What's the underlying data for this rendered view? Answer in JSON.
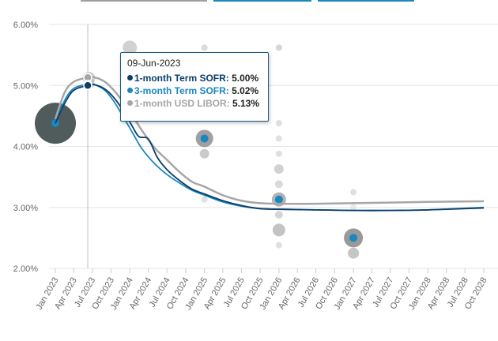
{
  "chart_data": {
    "type": "line",
    "title": "",
    "xlabel": "",
    "ylabel": "",
    "ylim": [
      2.0,
      6.0
    ],
    "xlim": [
      "2023-01-01",
      "2028-10-01"
    ],
    "y_ticks": [
      "2.00%",
      "3.00%",
      "4.00%",
      "5.00%",
      "6.00%"
    ],
    "y_tick_values": [
      2.0,
      3.0,
      4.0,
      5.0,
      6.0
    ],
    "x_ticks": [
      "Jan 2023",
      "Apr 2023",
      "Jul 2023",
      "Oct 2023",
      "Jan 2024",
      "Apr 2024",
      "Jul 2024",
      "Oct 2024",
      "Jan 2025",
      "Apr 2025",
      "Jul 2025",
      "Oct 2025",
      "Jan 2026",
      "Apr 2026",
      "Jul 2026",
      "Oct 2026",
      "Jan 2027",
      "Apr 2027",
      "Jul 2027",
      "Oct 2027",
      "Jan 2028",
      "Apr 2028",
      "Jul 2028",
      "Oct 2028"
    ],
    "x_tick_dates": [
      "2023-01-01",
      "2023-04-01",
      "2023-07-01",
      "2023-10-01",
      "2024-01-01",
      "2024-04-01",
      "2024-07-01",
      "2024-10-01",
      "2025-01-01",
      "2025-04-01",
      "2025-07-01",
      "2025-10-01",
      "2026-01-01",
      "2026-04-01",
      "2026-07-01",
      "2026-10-01",
      "2027-01-01",
      "2027-04-01",
      "2027-07-01",
      "2027-10-01",
      "2028-01-01",
      "2028-04-01",
      "2028-07-01",
      "2028-10-01"
    ],
    "grid": "horizontal",
    "crosshair_date": "2023-06-09",
    "series": [
      {
        "name": "1-month Term SOFR",
        "color": "#0b3d6b",
        "points": [
          [
            "2023-01-01",
            4.38
          ],
          [
            "2023-02-15",
            4.7
          ],
          [
            "2023-04-01",
            4.92
          ],
          [
            "2023-06-09",
            5.0
          ],
          [
            "2023-07-15",
            5.01
          ],
          [
            "2023-09-01",
            4.94
          ],
          [
            "2023-10-15",
            4.8
          ],
          [
            "2023-12-01",
            4.58
          ],
          [
            "2024-01-15",
            4.32
          ],
          [
            "2024-02-15",
            4.16
          ],
          [
            "2024-04-01",
            4.12
          ],
          [
            "2024-05-15",
            3.82
          ],
          [
            "2024-07-01",
            3.62
          ],
          [
            "2024-09-01",
            3.44
          ],
          [
            "2024-11-01",
            3.3
          ],
          [
            "2025-01-01",
            3.22
          ],
          [
            "2025-04-01",
            3.11
          ],
          [
            "2025-07-01",
            3.03
          ],
          [
            "2025-10-01",
            2.98
          ],
          [
            "2026-01-01",
            2.97
          ],
          [
            "2026-07-01",
            2.96
          ],
          [
            "2027-01-01",
            2.95
          ],
          [
            "2027-07-01",
            2.95
          ],
          [
            "2028-01-01",
            2.96
          ],
          [
            "2028-10-01",
            2.99
          ]
        ]
      },
      {
        "name": "3-month Term SOFR",
        "color": "#1a87c0",
        "points": [
          [
            "2023-01-01",
            4.38
          ],
          [
            "2023-02-15",
            4.75
          ],
          [
            "2023-04-01",
            4.95
          ],
          [
            "2023-06-09",
            5.02
          ],
          [
            "2023-07-15",
            5.01
          ],
          [
            "2023-09-01",
            4.92
          ],
          [
            "2023-10-15",
            4.74
          ],
          [
            "2023-12-01",
            4.48
          ],
          [
            "2024-01-15",
            4.22
          ],
          [
            "2024-03-01",
            3.96
          ],
          [
            "2024-05-01",
            3.72
          ],
          [
            "2024-07-01",
            3.54
          ],
          [
            "2024-09-01",
            3.4
          ],
          [
            "2024-11-01",
            3.28
          ],
          [
            "2025-01-01",
            3.2
          ],
          [
            "2025-04-01",
            3.09
          ],
          [
            "2025-07-01",
            3.02
          ],
          [
            "2025-10-01",
            2.98
          ],
          [
            "2026-01-01",
            2.97
          ],
          [
            "2026-07-01",
            2.96
          ],
          [
            "2027-01-01",
            2.95
          ],
          [
            "2027-07-01",
            2.95
          ],
          [
            "2028-01-01",
            2.96
          ],
          [
            "2028-10-01",
            3.0
          ]
        ]
      },
      {
        "name": "1-month USD LIBOR",
        "color": "#a6a6a6",
        "points": [
          [
            "2023-01-01",
            4.45
          ],
          [
            "2023-02-15",
            4.88
          ],
          [
            "2023-04-01",
            5.06
          ],
          [
            "2023-06-09",
            5.13
          ],
          [
            "2023-07-15",
            5.13
          ],
          [
            "2023-09-01",
            5.06
          ],
          [
            "2023-10-15",
            4.92
          ],
          [
            "2023-12-01",
            4.72
          ],
          [
            "2024-01-15",
            4.5
          ],
          [
            "2024-03-01",
            4.26
          ],
          [
            "2024-05-01",
            3.98
          ],
          [
            "2024-07-01",
            3.78
          ],
          [
            "2024-09-01",
            3.58
          ],
          [
            "2024-11-01",
            3.42
          ],
          [
            "2025-01-01",
            3.34
          ],
          [
            "2025-04-01",
            3.2
          ],
          [
            "2025-07-01",
            3.11
          ],
          [
            "2025-10-01",
            3.07
          ],
          [
            "2026-01-01",
            3.06
          ],
          [
            "2026-07-01",
            3.06
          ],
          [
            "2027-01-01",
            3.07
          ],
          [
            "2027-07-01",
            3.08
          ],
          [
            "2028-01-01",
            3.09
          ],
          [
            "2028-10-01",
            3.1
          ]
        ]
      }
    ],
    "scatter": [
      {
        "date": "2023-01-01",
        "value": 4.38,
        "size": 26,
        "color": "#3d4a4a",
        "opacity": 0.9
      },
      {
        "date": "2023-01-01",
        "value": 4.38,
        "size": 5,
        "color": "#1a87c0",
        "opacity": 1
      },
      {
        "date": "2023-06-15",
        "value": 5.12,
        "size": 8,
        "color": "#bbbbbb",
        "opacity": 0.7
      },
      {
        "date": "2023-06-15",
        "value": 5.04,
        "size": 7,
        "color": "#bbbbbb",
        "opacity": 0.7
      },
      {
        "date": "2024-01-01",
        "value": 5.62,
        "size": 9,
        "color": "#cccccc",
        "opacity": 0.9
      },
      {
        "date": "2025-01-01",
        "value": 5.62,
        "size": 4,
        "color": "#cccccc",
        "opacity": 0.7
      },
      {
        "date": "2025-01-01",
        "value": 4.13,
        "size": 11,
        "color": "#888888",
        "opacity": 0.8
      },
      {
        "date": "2025-01-01",
        "value": 4.13,
        "size": 5,
        "color": "#1a87c0",
        "opacity": 1
      },
      {
        "date": "2025-01-01",
        "value": 3.88,
        "size": 6,
        "color": "#c4c4c4",
        "opacity": 0.9
      },
      {
        "date": "2025-01-01",
        "value": 3.13,
        "size": 4,
        "color": "#dddddd",
        "opacity": 0.9
      },
      {
        "date": "2026-01-01",
        "value": 5.62,
        "size": 4,
        "color": "#cccccc",
        "opacity": 0.8
      },
      {
        "date": "2026-01-01",
        "value": 4.38,
        "size": 4,
        "color": "#dddddd",
        "opacity": 0.9
      },
      {
        "date": "2026-01-01",
        "value": 4.13,
        "size": 4,
        "color": "#dddddd",
        "opacity": 0.9
      },
      {
        "date": "2026-01-01",
        "value": 3.88,
        "size": 4,
        "color": "#dddddd",
        "opacity": 0.9
      },
      {
        "date": "2026-01-01",
        "value": 3.63,
        "size": 6,
        "color": "#cccccc",
        "opacity": 0.9
      },
      {
        "date": "2026-01-01",
        "value": 3.38,
        "size": 5,
        "color": "#d6d6d6",
        "opacity": 0.9
      },
      {
        "date": "2026-01-01",
        "value": 3.13,
        "size": 9,
        "color": "#999999",
        "opacity": 0.75
      },
      {
        "date": "2026-01-01",
        "value": 3.13,
        "size": 5,
        "color": "#1a87c0",
        "opacity": 1
      },
      {
        "date": "2026-01-01",
        "value": 2.88,
        "size": 5,
        "color": "#d0d0d0",
        "opacity": 0.9
      },
      {
        "date": "2026-01-01",
        "value": 2.63,
        "size": 8,
        "color": "#bdbdbd",
        "opacity": 0.9
      },
      {
        "date": "2026-01-01",
        "value": 2.38,
        "size": 4,
        "color": "#dddddd",
        "opacity": 0.9
      },
      {
        "date": "2027-01-01",
        "value": 3.25,
        "size": 4,
        "color": "#dddddd",
        "opacity": 0.9
      },
      {
        "date": "2027-01-01",
        "value": 3.0,
        "size": 4,
        "color": "#e4e4e4",
        "opacity": 0.9
      },
      {
        "date": "2027-01-01",
        "value": 2.5,
        "size": 12,
        "color": "#808080",
        "opacity": 0.8
      },
      {
        "date": "2027-01-01",
        "value": 2.5,
        "size": 5,
        "color": "#1a87c0",
        "opacity": 1
      },
      {
        "date": "2027-01-01",
        "value": 2.25,
        "size": 7,
        "color": "#c0c0c0",
        "opacity": 0.9
      }
    ],
    "hover_markers": [
      {
        "date": "2023-06-09",
        "value": 5.13,
        "color": "#a6a6a6"
      },
      {
        "date": "2023-06-09",
        "value": 5.02,
        "color": "#1a87c0"
      },
      {
        "date": "2023-06-09",
        "value": 5.0,
        "color": "#0b3d6b"
      }
    ]
  },
  "tooltip": {
    "date": "09-Jun-2023",
    "rows": [
      {
        "name": "1-month Term SOFR:",
        "value": "5.00%",
        "color": "#0b3d6b"
      },
      {
        "name": "3-month Term SOFR:",
        "value": "5.02%",
        "color": "#1a87c0"
      },
      {
        "name": "1-month USD LIBOR:",
        "value": "5.13%",
        "color": "#a6a6a6"
      }
    ]
  }
}
